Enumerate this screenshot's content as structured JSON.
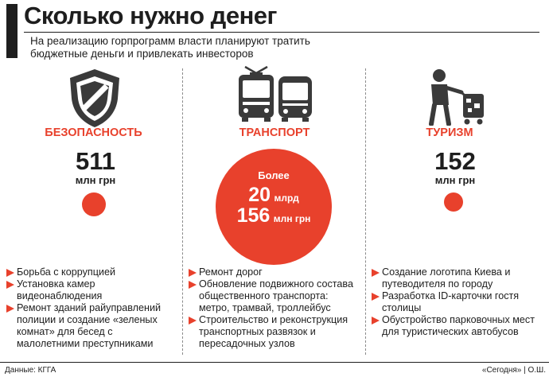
{
  "header": {
    "title": "Сколько нужно денег",
    "subtitle": "На реализацию горпрограмм власти планируют тратить бюджетные деньги и привлекать инвесторов"
  },
  "columns": [
    {
      "label": "БЕЗОПАСНОСТЬ",
      "icon": "shield-icon",
      "amount": "511",
      "unit": "млн грн",
      "items": [
        "Борьба с коррупцией",
        "Установка камер видеонаблюдения",
        "Ремонт зданий райуправлений полиции и создание «зеленых комнат» для бесед с малолетними преступниками"
      ]
    },
    {
      "label": "ТРАНСПОРТ",
      "icon": "tram-bus-icon",
      "amount_prefix": "Более",
      "amount_line1": "20",
      "amount_line1_unit": "млрд",
      "amount_line2": "156",
      "amount_line2_unit": "млн грн",
      "items": [
        "Ремонт дорог",
        "Обновление подвижного состава общественного транспорта: метро, трамвай, троллейбус",
        "Строительство и реконструкция транспортных развязок и пересадочных узлов"
      ]
    },
    {
      "label": "ТУРИЗМ",
      "icon": "tourist-luggage-icon",
      "amount": "152",
      "unit": "млн грн",
      "items": [
        "Создание логотипа Киева и путеводителя по городу",
        "Разработка ID-карточки гостя столицы",
        "Обустройство парковочных мест для туристических автобусов"
      ]
    }
  ],
  "footer": {
    "source": "Данные: КГГА",
    "credit": "«Сегодня» | О.Ш."
  },
  "colors": {
    "accent": "#e8412c",
    "text": "#1e1e1e",
    "icon": "#3a3a3a"
  }
}
